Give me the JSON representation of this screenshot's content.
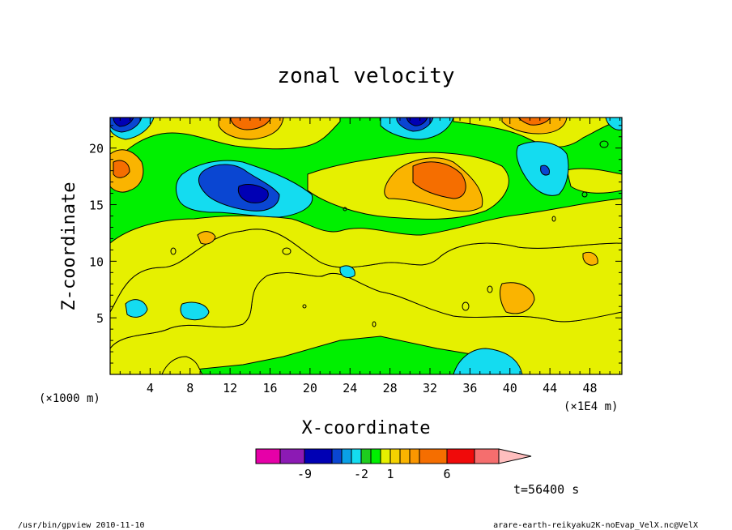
{
  "chart_data": {
    "type": "heatmap",
    "title": "zonal velocity",
    "xlabel": "X-coordinate",
    "ylabel": "Z-coordinate",
    "x_unit_label": "(×1000 m)",
    "x_scale_label": "(×1E4 m)",
    "x_ticks": [
      4,
      8,
      12,
      16,
      20,
      24,
      28,
      32,
      36,
      40,
      44,
      48
    ],
    "y_ticks": [
      5,
      10,
      15,
      20
    ],
    "xlim": [
      0,
      51.2
    ],
    "ylim": [
      0,
      22.7
    ],
    "time_label": "t=56400 s",
    "colorbar": {
      "colors": [
        "#e600a8",
        "#8c1ab4",
        "#0000b4",
        "#0a46d2",
        "#0aa0e6",
        "#14dcf0",
        "#1ecd1e",
        "#00f000",
        "#e6f000",
        "#f5d200",
        "#fab400",
        "#fa9600",
        "#f56e00",
        "#f00a0a",
        "#f56e6e",
        "#ffbebe"
      ],
      "tick_labels": [
        "-9",
        "-2",
        "1",
        "6"
      ]
    },
    "field_features": [
      {
        "x": 13.5,
        "z": 16.5,
        "value": -7
      },
      {
        "x": 1.5,
        "z": 22.3,
        "value": -6
      },
      {
        "x": 30.5,
        "z": 22.3,
        "value": -4
      },
      {
        "x": 42,
        "z": 18.5,
        "value": -2
      },
      {
        "x": 32.5,
        "z": 17,
        "value": 4
      },
      {
        "x": 14,
        "z": 22.3,
        "value": 5
      },
      {
        "x": 2,
        "z": 18,
        "value": 3
      },
      {
        "x": 36,
        "z": 1,
        "value": -2
      },
      {
        "x": 40,
        "z": 7,
        "value": 2
      }
    ]
  },
  "footer": {
    "left": "/usr/bin/gpview  2010-11-10",
    "right": "arare-earth-reikyaku2K-noEvap_VelX.nc@VelX"
  }
}
